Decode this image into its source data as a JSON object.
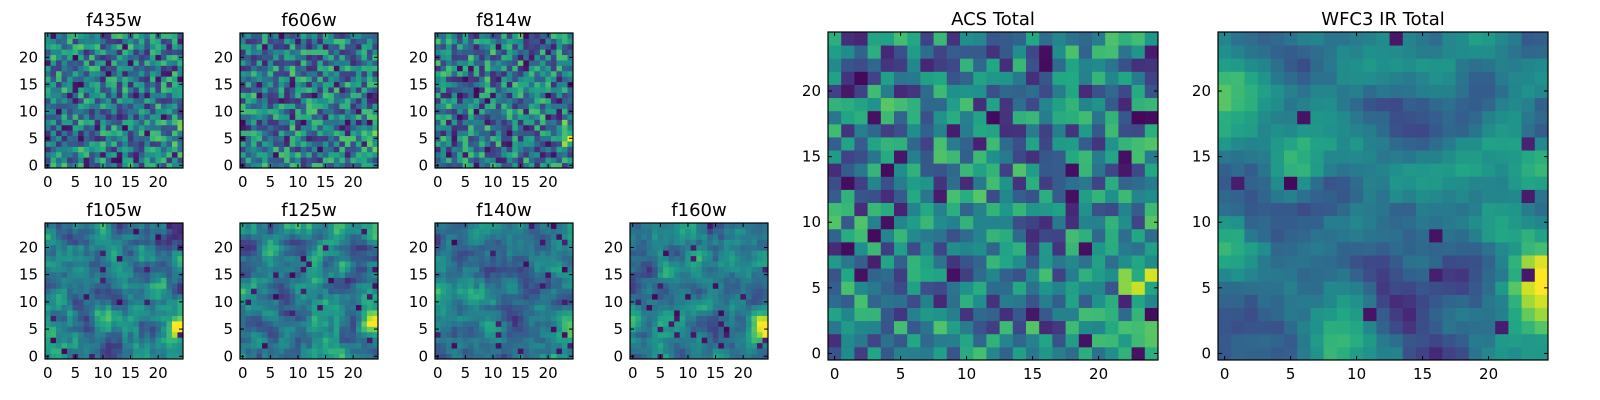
{
  "chart_data": [
    {
      "type": "heatmap",
      "title": "f435w",
      "grid_size": 25,
      "seed": 435,
      "blob": 0.15,
      "smooth": 0,
      "noise": 0.55,
      "holes": 0.05,
      "x_ticks": [
        0,
        5,
        10,
        15,
        20
      ],
      "y_ticks": [
        0,
        5,
        10,
        15,
        20
      ],
      "xlim": [
        0,
        25
      ],
      "ylim": [
        0,
        25
      ],
      "colormap": "viridis"
    },
    {
      "type": "heatmap",
      "title": "f606w",
      "grid_size": 25,
      "seed": 606,
      "blob": 0.2,
      "smooth": 0,
      "noise": 0.55,
      "holes": 0.06,
      "x_ticks": [
        0,
        5,
        10,
        15,
        20
      ],
      "y_ticks": [
        0,
        5,
        10,
        15,
        20
      ],
      "xlim": [
        0,
        25
      ],
      "ylim": [
        0,
        25
      ],
      "colormap": "viridis"
    },
    {
      "type": "heatmap",
      "title": "f814w",
      "grid_size": 25,
      "seed": 814,
      "blob": 0.3,
      "smooth": 0,
      "noise": 0.55,
      "holes": 0.07,
      "x_ticks": [
        0,
        5,
        10,
        15,
        20
      ],
      "y_ticks": [
        0,
        5,
        10,
        15,
        20
      ],
      "xlim": [
        0,
        25
      ],
      "ylim": [
        0,
        25
      ],
      "colormap": "viridis"
    },
    {
      "type": "heatmap",
      "title": "f105w",
      "grid_size": 25,
      "seed": 105,
      "blob": 0.5,
      "smooth": 1,
      "noise": 0.45,
      "holes": 0.04,
      "x_ticks": [
        0,
        5,
        10,
        15,
        20
      ],
      "y_ticks": [
        0,
        5,
        10,
        15,
        20
      ],
      "xlim": [
        0,
        25
      ],
      "ylim": [
        0,
        25
      ],
      "colormap": "viridis"
    },
    {
      "type": "heatmap",
      "title": "f125w",
      "grid_size": 25,
      "seed": 125,
      "blob": 0.5,
      "smooth": 1,
      "noise": 0.4,
      "holes": 0.03,
      "x_ticks": [
        0,
        5,
        10,
        15,
        20
      ],
      "y_ticks": [
        0,
        5,
        10,
        15,
        20
      ],
      "xlim": [
        0,
        25
      ],
      "ylim": [
        0,
        25
      ],
      "colormap": "viridis"
    },
    {
      "type": "heatmap",
      "title": "f140w",
      "grid_size": 25,
      "seed": 140,
      "blob": 0.5,
      "smooth": 1,
      "noise": 0.45,
      "holes": 0.04,
      "x_ticks": [
        0,
        5,
        10,
        15,
        20
      ],
      "y_ticks": [
        0,
        5,
        10,
        15,
        20
      ],
      "xlim": [
        0,
        25
      ],
      "ylim": [
        0,
        25
      ],
      "colormap": "viridis"
    },
    {
      "type": "heatmap",
      "title": "f160w",
      "grid_size": 25,
      "seed": 160,
      "blob": 0.55,
      "smooth": 1,
      "noise": 0.45,
      "holes": 0.04,
      "x_ticks": [
        0,
        5,
        10,
        15,
        20
      ],
      "y_ticks": [
        0,
        5,
        10,
        15,
        20
      ],
      "xlim": [
        0,
        25
      ],
      "ylim": [
        0,
        25
      ],
      "colormap": "viridis"
    },
    {
      "type": "heatmap",
      "title": "ACS Total",
      "grid_size": 25,
      "seed": 999,
      "blob": 0.3,
      "smooth": 0,
      "noise": 0.4,
      "holes": 0.05,
      "x_ticks": [
        0,
        5,
        10,
        15,
        20
      ],
      "y_ticks": [
        0,
        5,
        10,
        15,
        20
      ],
      "xlim": [
        0,
        25
      ],
      "ylim": [
        0,
        25
      ],
      "colormap": "viridis"
    },
    {
      "type": "heatmap",
      "title": "WFC3 IR Total",
      "grid_size": 25,
      "seed": 333,
      "blob": 0.6,
      "smooth": 2,
      "noise": 0.3,
      "holes": 0.02,
      "x_ticks": [
        0,
        5,
        10,
        15,
        20
      ],
      "y_ticks": [
        0,
        5,
        10,
        15,
        20
      ],
      "xlim": [
        0,
        25
      ],
      "ylim": [
        0,
        25
      ],
      "colormap": "viridis"
    }
  ]
}
